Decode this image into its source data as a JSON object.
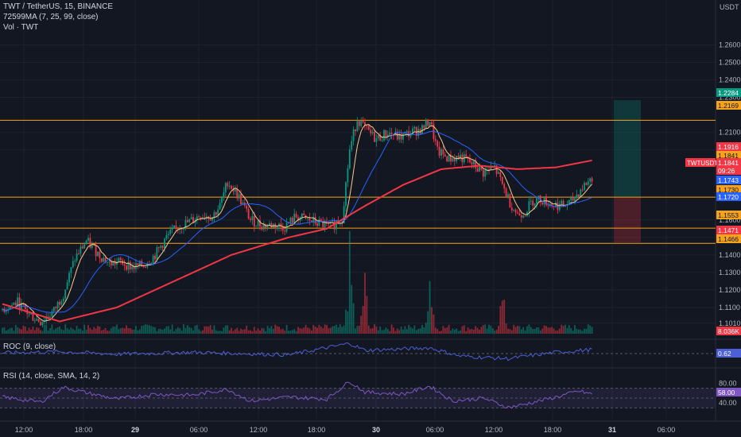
{
  "header": {
    "symbol_line": "TWT / TetherUS, 15, BINANCE",
    "ma_line": "72599MA (7, 25, 99, close)",
    "vol_line": "Vol · TWT"
  },
  "indicators": {
    "roc_title": "ROC (9, close)",
    "rsi_title": "RSI (14, close, SMA, 14, 2)",
    "roc_value": "0.62",
    "rsi_value": "58.00"
  },
  "price_axis": {
    "currency": "USDT",
    "ticks": [
      "1.2600",
      "1.2500",
      "1.2400",
      "1.2300",
      "1.2100",
      "1.2000",
      "1.1600",
      "1.1500",
      "1.1400",
      "1.1300",
      "1.1200",
      "1.1100",
      "1.1010"
    ]
  },
  "rsi_axis": {
    "ticks": [
      "80.00",
      "40.00"
    ]
  },
  "time_axis": [
    "12:00",
    "18:00",
    "29",
    "06:00",
    "12:00",
    "18:00",
    "30",
    "06:00",
    "12:00",
    "18:00",
    "31",
    "06:00"
  ],
  "price_labels": [
    {
      "text": "1.2284",
      "color": "#089981"
    },
    {
      "text": "1.2169",
      "color": "#f7a21b"
    },
    {
      "text": "1.1916",
      "color": "#f23645"
    },
    {
      "text": "1.1841",
      "color": "#f7a21b"
    },
    {
      "text": "TWTUSDT",
      "color": "#f23645"
    },
    {
      "text": "1.1841",
      "color": "#f23645"
    },
    {
      "text": "09:26",
      "color": "#f23645"
    },
    {
      "text": "1.1743",
      "color": "#2962ff"
    },
    {
      "text": "1.1730",
      "color": "#f7a21b"
    },
    {
      "text": "1.1720",
      "color": "#2962ff"
    },
    {
      "text": "1.1553",
      "color": "#f7a21b"
    },
    {
      "text": "1.1471",
      "color": "#f23645"
    },
    {
      "text": "1.1466",
      "color": "#f7a21b"
    },
    {
      "text": "8.036K",
      "color": "#f23645"
    }
  ],
  "colors": {
    "background": "#131722",
    "grid": "#1e222d",
    "up": "#089981",
    "down": "#f23645",
    "ma7": "#f7c98b",
    "ma25": "#2962ff",
    "ma99": "#f23645",
    "hline": "#f7a21b",
    "roc": "#4c5fd5",
    "rsi": "#7e57c2",
    "rsi_band": "rgba(126,87,194,0.12)",
    "tp_zone": "rgba(8,153,129,0.25)",
    "sl_zone": "rgba(242,54,69,0.25)"
  },
  "chart_data": {
    "type": "candlestick",
    "symbol": "TWT / TetherUS",
    "exchange": "BINANCE",
    "interval": "15",
    "ylim": [
      1.095,
      1.272
    ],
    "horizontal_levels": [
      1.2169,
      1.173,
      1.1553,
      1.1466
    ],
    "position": {
      "entry": 1.173,
      "take_profit": 1.2284,
      "stop_loss": 1.1471
    },
    "moving_averages": [
      {
        "name": "MA 7"
      },
      {
        "name": "MA 25"
      },
      {
        "name": "MA 99"
      }
    ],
    "series_anchors": {
      "close": [
        [
          0,
          1.109
        ],
        [
          8,
          1.113
        ],
        [
          14,
          1.106
        ],
        [
          20,
          1.102
        ],
        [
          27,
          1.108
        ],
        [
          32,
          1.118
        ],
        [
          38,
          1.138
        ],
        [
          44,
          1.148
        ],
        [
          50,
          1.141
        ],
        [
          56,
          1.135
        ],
        [
          62,
          1.136
        ],
        [
          68,
          1.133
        ],
        [
          74,
          1.134
        ],
        [
          80,
          1.14
        ],
        [
          86,
          1.15
        ],
        [
          92,
          1.156
        ],
        [
          98,
          1.159
        ],
        [
          104,
          1.163
        ],
        [
          110,
          1.162
        ],
        [
          114,
          1.168
        ],
        [
          118,
          1.182
        ],
        [
          124,
          1.173
        ],
        [
          130,
          1.16
        ],
        [
          136,
          1.157
        ],
        [
          142,
          1.157
        ],
        [
          148,
          1.156
        ],
        [
          154,
          1.162
        ],
        [
          160,
          1.16
        ],
        [
          166,
          1.158
        ],
        [
          172,
          1.156
        ],
        [
          178,
          1.161
        ],
        [
          182,
          1.2
        ],
        [
          186,
          1.218
        ],
        [
          190,
          1.212
        ],
        [
          196,
          1.206
        ],
        [
          202,
          1.21
        ],
        [
          208,
          1.207
        ],
        [
          214,
          1.21
        ],
        [
          220,
          1.212
        ],
        [
          224,
          1.217
        ],
        [
          228,
          1.199
        ],
        [
          234,
          1.195
        ],
        [
          240,
          1.196
        ],
        [
          246,
          1.192
        ],
        [
          252,
          1.187
        ],
        [
          258,
          1.19
        ],
        [
          262,
          1.18
        ],
        [
          266,
          1.17
        ],
        [
          270,
          1.163
        ],
        [
          274,
          1.165
        ],
        [
          278,
          1.171
        ],
        [
          282,
          1.172
        ],
        [
          288,
          1.169
        ],
        [
          294,
          1.168
        ],
        [
          298,
          1.17
        ],
        [
          302,
          1.176
        ],
        [
          306,
          1.181
        ],
        [
          309,
          1.184
        ]
      ],
      "ma99": [
        [
          0,
          1.112
        ],
        [
          30,
          1.102
        ],
        [
          60,
          1.11
        ],
        [
          90,
          1.125
        ],
        [
          120,
          1.14
        ],
        [
          150,
          1.15
        ],
        [
          170,
          1.155
        ],
        [
          190,
          1.168
        ],
        [
          210,
          1.18
        ],
        [
          230,
          1.189
        ],
        [
          250,
          1.191
        ],
        [
          270,
          1.189
        ],
        [
          290,
          1.19
        ],
        [
          309,
          1.194
        ]
      ],
      "roc": [
        [
          0,
          0.1
        ],
        [
          30,
          0.3
        ],
        [
          60,
          -0.1
        ],
        [
          100,
          0.2
        ],
        [
          150,
          -0.2
        ],
        [
          182,
          1.6
        ],
        [
          190,
          0.5
        ],
        [
          224,
          0.9
        ],
        [
          240,
          -0.4
        ],
        [
          265,
          -0.8
        ],
        [
          290,
          0.2
        ],
        [
          309,
          0.62
        ]
      ],
      "rsi": [
        [
          0,
          52
        ],
        [
          20,
          42
        ],
        [
          32,
          72
        ],
        [
          45,
          60
        ],
        [
          60,
          48
        ],
        [
          80,
          58
        ],
        [
          100,
          56
        ],
        [
          118,
          68
        ],
        [
          130,
          44
        ],
        [
          150,
          52
        ],
        [
          170,
          48
        ],
        [
          182,
          84
        ],
        [
          190,
          62
        ],
        [
          210,
          58
        ],
        [
          224,
          74
        ],
        [
          236,
          44
        ],
        [
          252,
          50
        ],
        [
          265,
          31
        ],
        [
          272,
          36
        ],
        [
          290,
          52
        ],
        [
          302,
          64
        ],
        [
          309,
          58
        ]
      ],
      "volume_spikes": [
        [
          182,
          10
        ],
        [
          190,
          6
        ],
        [
          224,
          8
        ],
        [
          262,
          4
        ]
      ]
    }
  }
}
